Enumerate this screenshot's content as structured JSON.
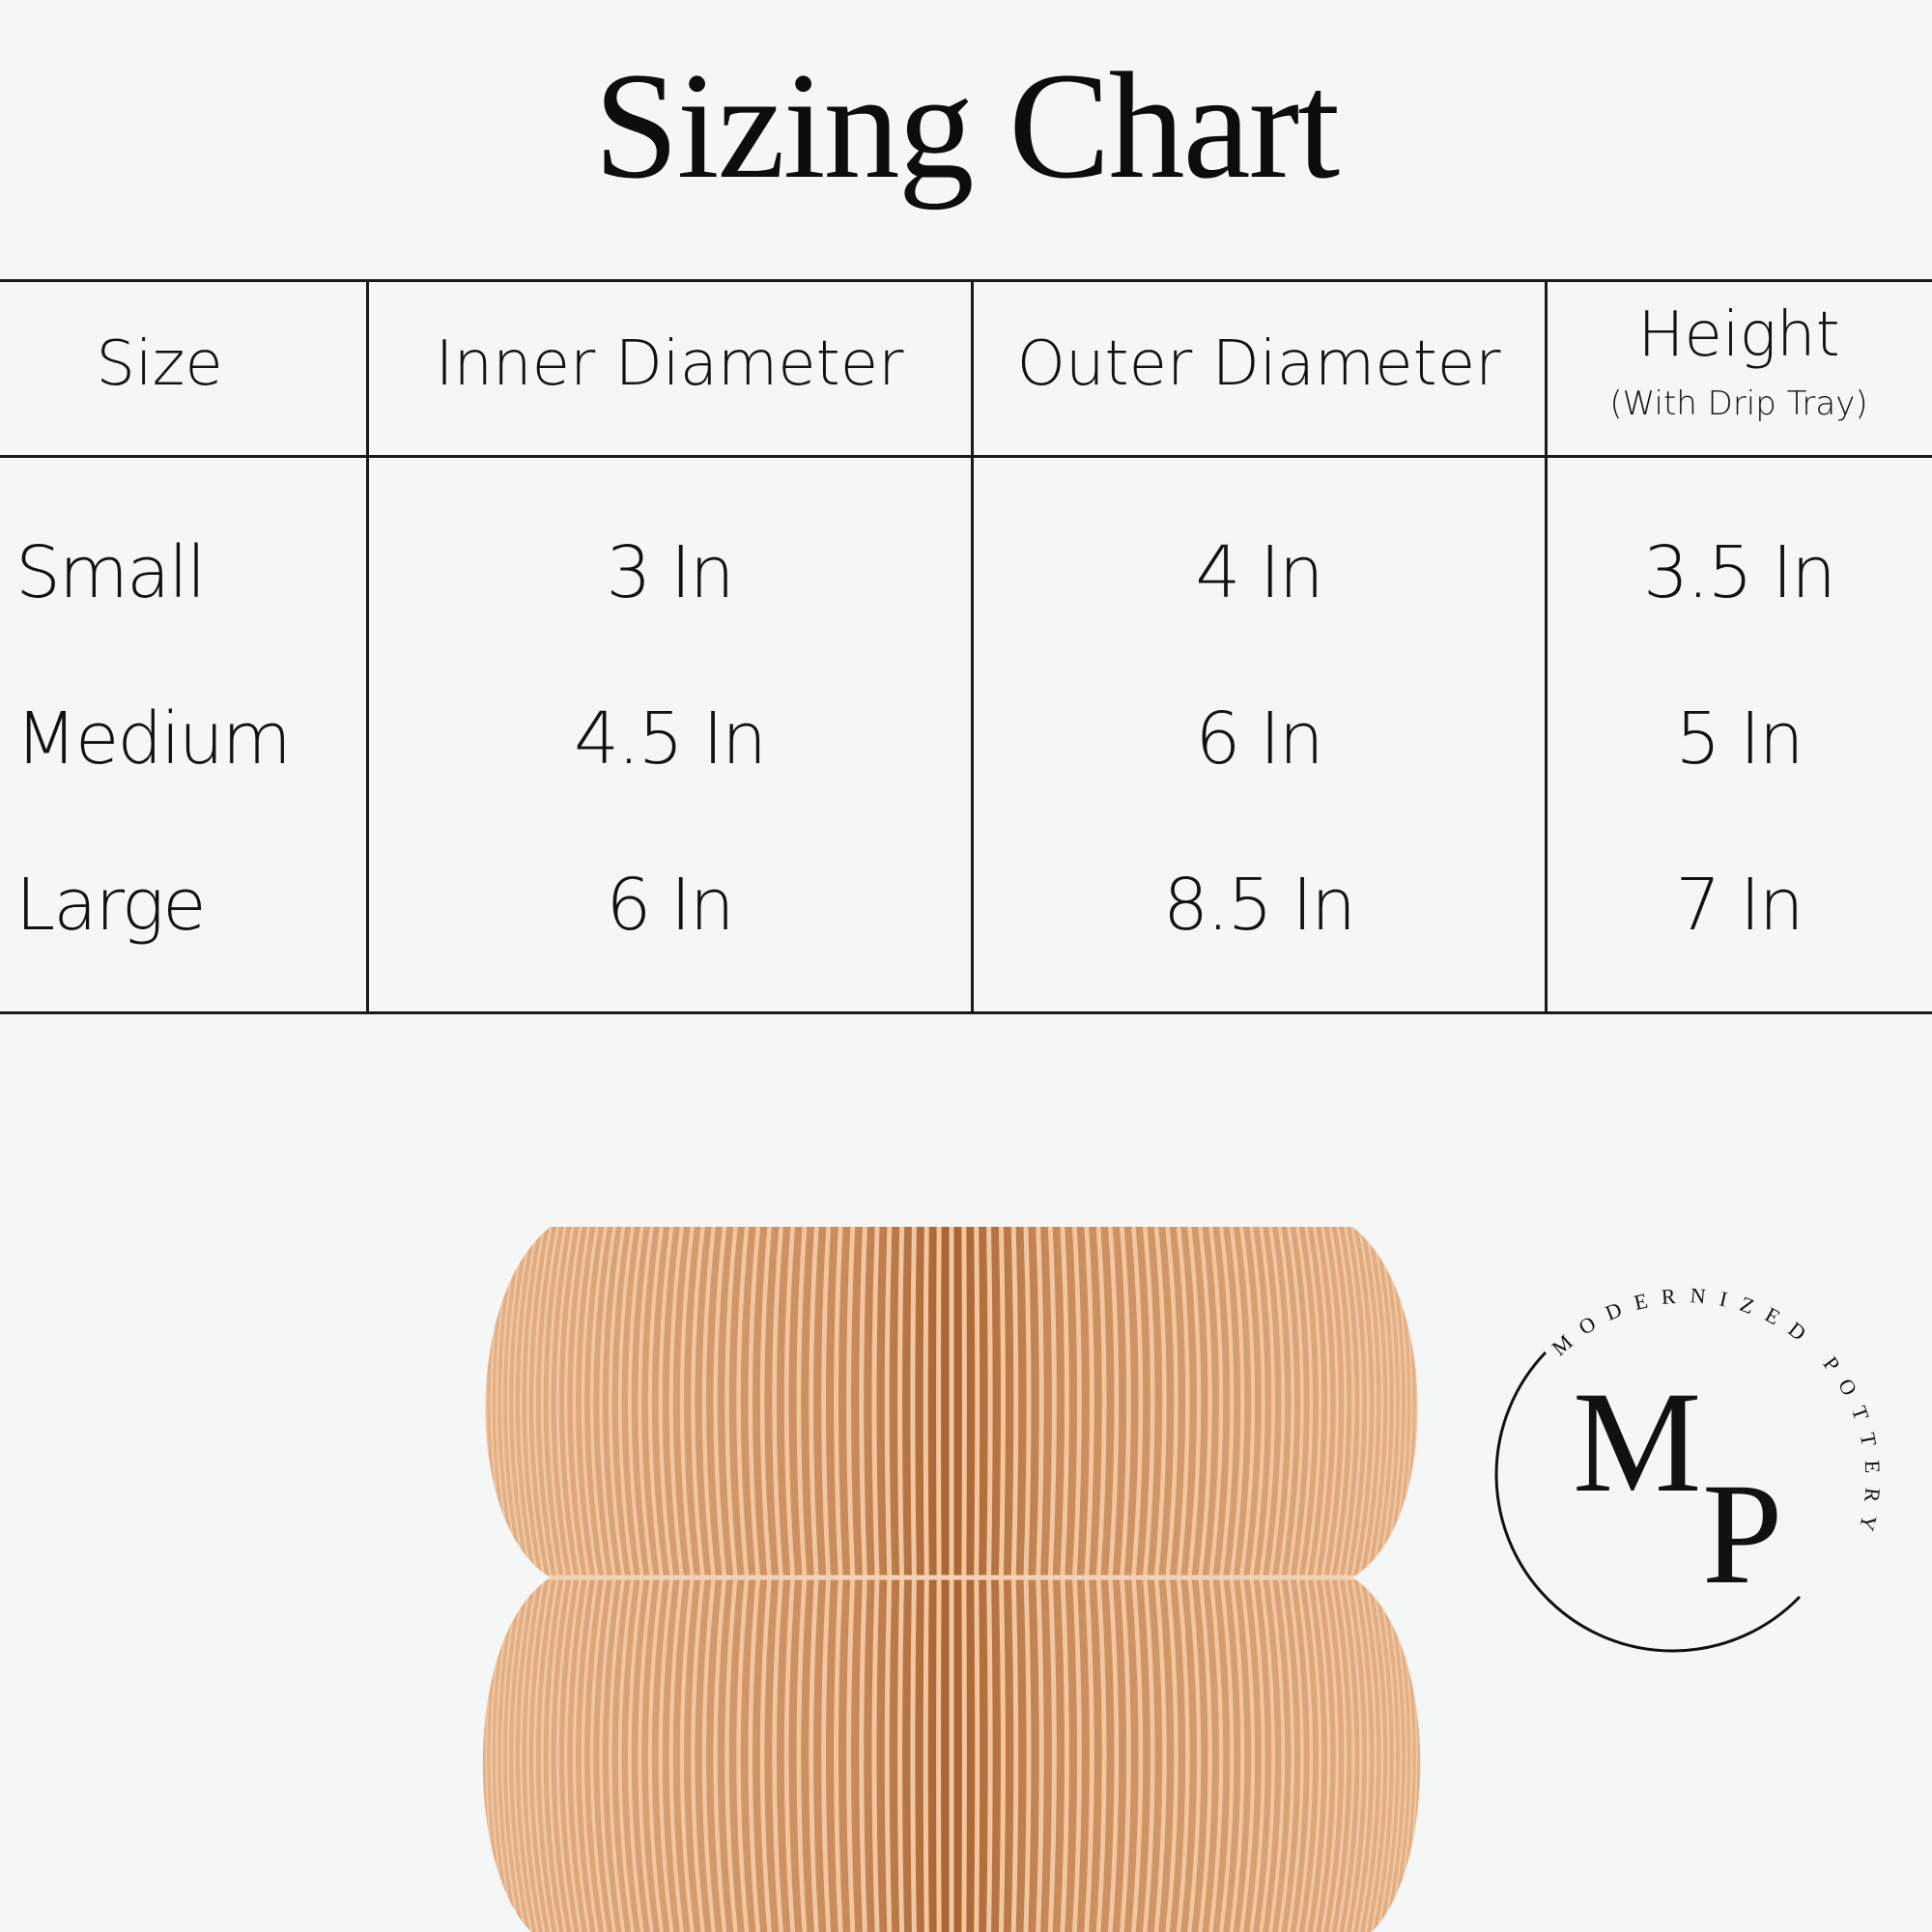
{
  "title": "Sizing Chart",
  "table": {
    "headers": [
      "Size",
      "Inner Diameter",
      "Outer Diameter",
      "Height"
    ],
    "height_note": "(With Drip Tray)",
    "rows": [
      [
        "Small",
        "3 In",
        "4 In",
        "3.5 In"
      ],
      [
        "Medium",
        "4.5 In",
        "6 In",
        "5 In"
      ],
      [
        "Large",
        "6 In",
        "8.5 In",
        "7 In"
      ]
    ]
  },
  "logo": {
    "monogram_m": "M",
    "monogram_p": "P",
    "arc_text": "MODERNIZED POTTERY"
  },
  "colors": {
    "vase": "#c98a58",
    "vase_light": "#f0c7a3",
    "background": "#f5f6f6"
  }
}
